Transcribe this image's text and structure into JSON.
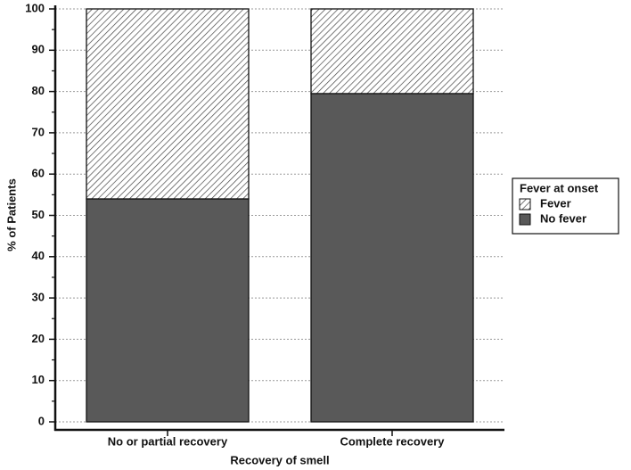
{
  "chart_data": {
    "type": "stacked_bar",
    "x_label": "Recovery of smell",
    "y_label": "% of Patients",
    "categories": [
      "No or partial recovery",
      "Complete recovery"
    ],
    "series": [
      {
        "name": "Fever",
        "color": "#ffffff",
        "hatch": true,
        "values": [
          46,
          20.5
        ]
      },
      {
        "name": "No fever",
        "color": "#595959",
        "hatch": false,
        "values": [
          54,
          79.5
        ]
      }
    ],
    "legend_title": "Fever at onset",
    "legend": "right",
    "ylim": [
      0,
      100
    ],
    "yticks": [
      0,
      10,
      20,
      30,
      40,
      50,
      60,
      70,
      80,
      90,
      100
    ],
    "grid": true
  }
}
